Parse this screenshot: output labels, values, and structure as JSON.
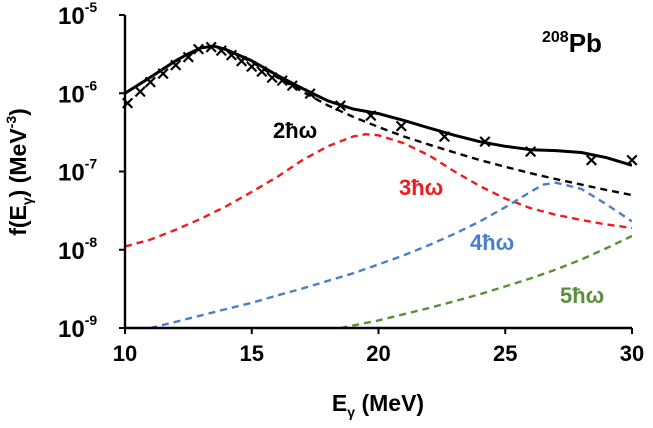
{
  "chart_data": {
    "type": "line",
    "title": "",
    "xlabel": "E",
    "xlabel_sub": "γ",
    "xlabel_unit": " (MeV)",
    "ylabel_pre": "f(E",
    "ylabel_sub": "γ",
    "ylabel_mid": ") (MeV",
    "ylabel_exp": "-3",
    "ylabel_post": ")",
    "xlim": [
      10,
      30
    ],
    "ylim": [
      1e-09,
      1e-05
    ],
    "yscale": "log",
    "grid": false,
    "annotation": {
      "sup": "208",
      "text": "Pb"
    },
    "x_ticks": [
      "10",
      "15",
      "20",
      "25",
      "30"
    ],
    "y_ticks": [
      {
        "base": "10",
        "exp": "-5"
      },
      {
        "base": "10",
        "exp": "-6"
      },
      {
        "base": "10",
        "exp": "-7"
      },
      {
        "base": "10",
        "exp": "-8"
      },
      {
        "base": "10",
        "exp": "-9"
      }
    ],
    "series": [
      {
        "name": "",
        "style": "solid",
        "color": "#000000",
        "x": [
          10,
          11,
          12,
          12.5,
          13,
          13.5,
          14,
          15,
          16,
          17,
          18,
          19,
          20,
          21,
          22,
          23,
          24,
          25,
          26,
          27,
          28,
          29,
          30
        ],
        "y": [
          1e-06,
          1.6e-06,
          2.6e-06,
          3.2e-06,
          3.8e-06,
          4e-06,
          3.6e-06,
          2.6e-06,
          1.7e-06,
          1.15e-06,
          8e-07,
          6.3e-07,
          5.5e-07,
          4.5e-07,
          3.6e-07,
          2.9e-07,
          2.4e-07,
          2.1e-07,
          1.9e-07,
          1.85e-07,
          1.75e-07,
          1.5e-07,
          1.2e-07
        ]
      },
      {
        "name": "2ħω",
        "style": "dashed",
        "color": "#000000",
        "x": [
          10,
          11,
          12,
          12.5,
          13,
          13.5,
          14,
          15,
          16,
          17,
          18,
          19,
          20,
          21,
          22,
          23,
          24,
          25,
          26,
          27,
          28,
          29,
          30
        ],
        "y": [
          1e-06,
          1.6e-06,
          2.6e-06,
          3.2e-06,
          3.8e-06,
          4e-06,
          3.6e-06,
          2.5e-06,
          1.6e-06,
          1.05e-06,
          7e-07,
          5e-07,
          3.7e-07,
          2.8e-07,
          2.2e-07,
          1.75e-07,
          1.4e-07,
          1.15e-07,
          9.5e-08,
          8e-08,
          6.8e-08,
          5.8e-08,
          5e-08
        ]
      },
      {
        "name": "3ħω",
        "style": "dashed",
        "color": "#ee1c1c",
        "x": [
          10,
          11,
          12,
          13,
          14,
          15,
          16,
          17,
          18,
          19,
          19.5,
          20,
          21,
          22,
          23,
          24,
          25,
          26,
          27,
          28,
          29,
          30
        ],
        "y": [
          1.1e-08,
          1.35e-08,
          1.8e-08,
          2.5e-08,
          3.6e-08,
          5.5e-08,
          8.5e-08,
          1.4e-07,
          2.1e-07,
          2.8e-07,
          3e-07,
          2.9e-07,
          2.3e-07,
          1.6e-07,
          1e-07,
          6.5e-08,
          4.5e-08,
          3.4e-08,
          2.8e-08,
          2.4e-08,
          2.1e-08,
          1.9e-08
        ]
      },
      {
        "name": "4ħω",
        "style": "dashed",
        "color": "#4a7ec9",
        "x": [
          11,
          12,
          13,
          14,
          15,
          16,
          17,
          18,
          19,
          20,
          21,
          22,
          23,
          24,
          25,
          26,
          26.5,
          27,
          28,
          29,
          30
        ],
        "y": [
          1e-09,
          1.2e-09,
          1.45e-09,
          1.75e-09,
          2.1e-09,
          2.6e-09,
          3.2e-09,
          4e-09,
          5e-09,
          6.5e-09,
          8.5e-09,
          1.15e-08,
          1.6e-08,
          2.3e-08,
          3.5e-08,
          5.5e-08,
          6.8e-08,
          7.2e-08,
          6e-08,
          3.8e-08,
          2.3e-08
        ]
      },
      {
        "name": "5ħω",
        "style": "dashed",
        "color": "#5a8f3a",
        "x": [
          18.5,
          20,
          21,
          22,
          23,
          24,
          25,
          26,
          27,
          28,
          29,
          30
        ],
        "y": [
          1e-09,
          1.25e-09,
          1.5e-09,
          1.8e-09,
          2.2e-09,
          2.7e-09,
          3.4e-09,
          4.3e-09,
          5.6e-09,
          7.5e-09,
          1.05e-08,
          1.5e-08
        ]
      }
    ],
    "markers": {
      "symbol": "×",
      "color": "#000000",
      "x": [
        10.1,
        10.6,
        11.0,
        11.5,
        12.0,
        12.5,
        12.9,
        13.4,
        13.8,
        14.2,
        14.6,
        15.0,
        15.4,
        15.8,
        16.2,
        16.6,
        17.3,
        18.5,
        19.7,
        20.9,
        22.6,
        24.2,
        26.0,
        28.4,
        30.0
      ],
      "y": [
        7.5e-07,
        1.05e-06,
        1.4e-06,
        1.8e-06,
        2.3e-06,
        2.9e-06,
        3.7e-06,
        3.9e-06,
        3.5e-06,
        3.1e-06,
        2.6e-06,
        2.2e-06,
        1.9e-06,
        1.6e-06,
        1.45e-06,
        1.25e-06,
        1e-06,
        7e-07,
        5.2e-07,
        3.8e-07,
        2.8e-07,
        2.4e-07,
        1.8e-07,
        1.4e-07,
        1.4e-07
      ]
    }
  }
}
